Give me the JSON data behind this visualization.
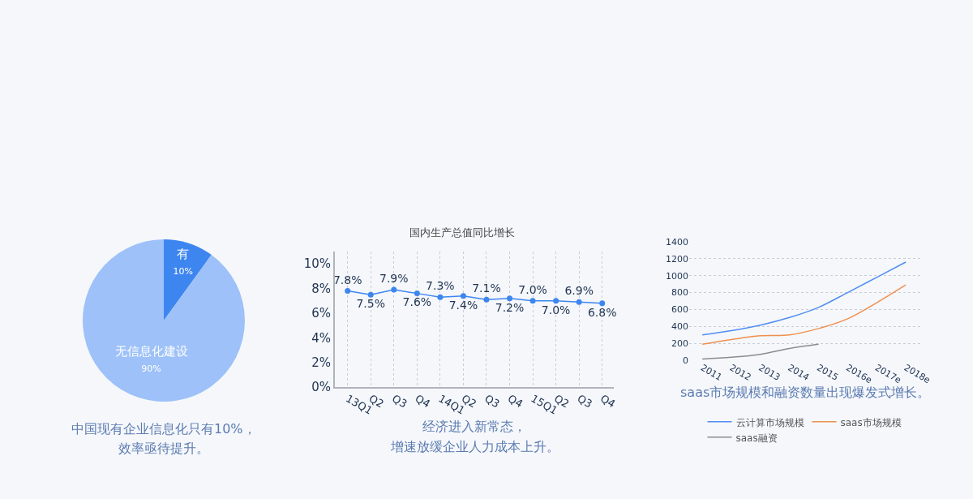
{
  "chart_data": [
    {
      "type": "pie",
      "categories": [
        "有",
        "无信息化建设"
      ],
      "values": [
        10,
        90
      ],
      "value_labels": [
        "10%",
        "90%"
      ],
      "colors": [
        "#3d86f0",
        "#9dc1f8"
      ],
      "legend": false,
      "annotations": [
        "中国现有企业信息化只有10%，",
        "效率亟待提升。"
      ]
    },
    {
      "type": "line",
      "title": "国内生产总值同比增长",
      "categories": [
        "13Q1",
        "Q2",
        "Q3",
        "Q4",
        "14Q1",
        "Q2",
        "Q3",
        "Q4",
        "15Q1",
        "Q2",
        "Q3",
        "Q4"
      ],
      "series": [
        {
          "color": "#3d86f0",
          "values": [
            7.8,
            7.5,
            7.9,
            7.6,
            7.3,
            7.4,
            7.1,
            7.2,
            7.0,
            7.0,
            6.9,
            6.8
          ]
        }
      ],
      "value_labels": [
        "7.8%",
        "7.5%",
        "7.9%",
        "7.6%",
        "7.3%",
        "7.4%",
        "7.1%",
        "7.2%",
        "7.0%",
        "7.0%",
        "6.9%",
        "6.8%"
      ],
      "ylim": [
        0,
        11
      ],
      "yticks": [
        {
          "value": 0,
          "label": "0%"
        },
        {
          "value": 2,
          "label": "2%"
        },
        {
          "value": 4,
          "label": "4%"
        },
        {
          "value": 6,
          "label": "6%"
        },
        {
          "value": 8,
          "label": "8%"
        },
        {
          "value": 10,
          "label": "10%"
        }
      ],
      "grid": "x",
      "marker": "circle",
      "legend": false,
      "annotations": [
        "经济进入新常态，",
        "增速放缓企业人力成本上升。"
      ]
    },
    {
      "type": "line",
      "categories": [
        "2011",
        "2012",
        "2013",
        "2014",
        "2015",
        "2016e",
        "2017e",
        "2018e"
      ],
      "series": [
        {
          "name": "云计算市场规模",
          "color": "#4f8ef2",
          "values": [
            300,
            350,
            415,
            505,
            625,
            800,
            980,
            1160
          ]
        },
        {
          "name": "saas市场规模",
          "color": "#f0904e",
          "values": [
            190,
            245,
            290,
            300,
            375,
            490,
            680,
            890
          ]
        },
        {
          "name": "saas融资",
          "color": "#8c8c8c",
          "values": [
            15,
            35,
            70,
            140,
            190,
            null,
            null,
            null
          ]
        }
      ],
      "ylim": [
        0,
        1400
      ],
      "yticks": [
        0,
        200,
        400,
        600,
        800,
        1000,
        1200,
        1400
      ],
      "grid": "y",
      "marker": "none",
      "legend": "bottom",
      "annotations": [
        "saas市场规模和融资数量出现爆发式增长。"
      ]
    }
  ]
}
